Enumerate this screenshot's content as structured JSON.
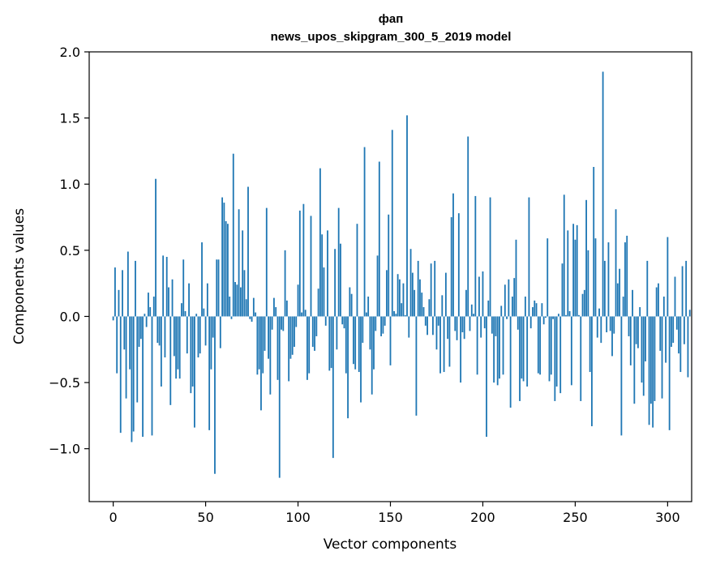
{
  "chart_data": {
    "type": "bar",
    "title": "фап",
    "subtitle": "news_upos_skipgram_300_5_2019 model",
    "xlabel": "Vector components",
    "ylabel": "Components values",
    "xlim": [
      -13,
      313
    ],
    "ylim": [
      -1.4,
      2.0
    ],
    "xticks": [
      0,
      50,
      100,
      150,
      200,
      250,
      300
    ],
    "xtick_labels": [
      "0",
      "50",
      "100",
      "150",
      "200",
      "250",
      "300"
    ],
    "yticks": [
      -1.0,
      -0.5,
      0.0,
      0.5,
      1.0,
      1.5,
      2.0
    ],
    "ytick_labels": [
      "−1.0",
      "−0.5",
      "0.0",
      "0.5",
      "1.0",
      "1.5",
      "2.0"
    ],
    "grid": false,
    "bar_color": "#1f77b4",
    "values": [
      -0.03,
      0.37,
      -0.43,
      0.2,
      -0.88,
      0.35,
      -0.25,
      -0.62,
      0.49,
      -0.4,
      -0.95,
      -0.87,
      0.42,
      -0.65,
      -0.23,
      -0.17,
      -0.91,
      0.02,
      -0.08,
      0.18,
      0.07,
      -0.9,
      0.15,
      1.04,
      -0.2,
      -0.22,
      -0.53,
      0.46,
      -0.31,
      0.45,
      0.22,
      -0.67,
      0.28,
      -0.3,
      -0.47,
      -0.4,
      -0.47,
      0.1,
      0.43,
      0.04,
      -0.28,
      0.25,
      -0.58,
      -0.53,
      -0.84,
      0.02,
      -0.31,
      -0.28,
      0.56,
      0.06,
      -0.22,
      0.25,
      -0.86,
      -0.4,
      -0.16,
      -1.19,
      0.43,
      0.43,
      -0.24,
      0.9,
      0.86,
      0.72,
      0.7,
      0.15,
      -0.02,
      1.23,
      0.26,
      0.24,
      0.81,
      0.22,
      0.65,
      0.35,
      0.13,
      0.98,
      -0.02,
      -0.04,
      0.14,
      0.03,
      -0.44,
      -0.4,
      -0.71,
      -0.43,
      -0.26,
      0.82,
      -0.32,
      -0.59,
      -0.1,
      0.14,
      0.07,
      -0.48,
      -1.22,
      -0.1,
      -0.11,
      0.5,
      0.12,
      -0.49,
      -0.32,
      -0.29,
      -0.23,
      -0.08,
      0.24,
      0.8,
      0.03,
      0.85,
      0.05,
      -0.48,
      -0.43,
      0.76,
      -0.23,
      -0.26,
      -0.15,
      0.21,
      1.12,
      0.62,
      0.37,
      -0.07,
      0.65,
      -0.41,
      -0.39,
      -1.07,
      0.51,
      -0.25,
      0.82,
      0.55,
      -0.06,
      -0.09,
      -0.43,
      -0.77,
      0.22,
      0.17,
      -0.36,
      -0.4,
      0.7,
      -0.42,
      -0.65,
      -0.2,
      1.28,
      0.03,
      0.15,
      -0.25,
      -0.59,
      -0.4,
      -0.11,
      0.46,
      1.17,
      -0.15,
      -0.13,
      -0.07,
      0.35,
      0.77,
      -0.37,
      1.41,
      0.04,
      0.02,
      0.32,
      0.28,
      0.1,
      0.25,
      0.01,
      1.52,
      -0.16,
      0.51,
      0.33,
      0.2,
      -0.75,
      0.42,
      0.28,
      0.18,
      0.07,
      -0.07,
      -0.14,
      0.13,
      0.4,
      -0.14,
      0.42,
      -0.25,
      -0.07,
      -0.43,
      0.16,
      -0.42,
      0.33,
      -0.17,
      -0.38,
      0.75,
      0.93,
      -0.11,
      -0.18,
      0.78,
      -0.5,
      -0.12,
      -0.17,
      0.2,
      1.36,
      -0.11,
      0.09,
      0.02,
      0.91,
      -0.44,
      0.3,
      -0.16,
      0.34,
      -0.09,
      -0.91,
      0.12,
      0.9,
      -0.13,
      -0.5,
      -0.15,
      -0.52,
      -0.47,
      0.08,
      -0.44,
      0.24,
      -0.02,
      0.28,
      -0.69,
      0.15,
      0.29,
      0.58,
      -0.1,
      -0.64,
      -0.47,
      -0.49,
      0.15,
      -0.53,
      0.9,
      -0.09,
      0.07,
      0.12,
      0.1,
      -0.43,
      -0.44,
      0.1,
      -0.06,
      -0.01,
      0.59,
      -0.49,
      -0.44,
      -0.02,
      -0.64,
      -0.53,
      0.02,
      -0.58,
      0.4,
      0.92,
      0.01,
      0.65,
      0.04,
      -0.52,
      0.7,
      0.58,
      0.69,
      0.01,
      -0.64,
      0.17,
      0.2,
      0.88,
      0.5,
      -0.42,
      -0.83,
      1.13,
      0.59,
      -0.16,
      0.06,
      -0.2,
      1.85,
      0.42,
      -0.12,
      0.56,
      -0.11,
      -0.3,
      -0.13,
      0.81,
      0.25,
      0.36,
      -0.9,
      0.15,
      0.56,
      0.61,
      -0.15,
      -0.37,
      0.2,
      -0.66,
      -0.21,
      -0.24,
      0.07,
      -0.5,
      -0.6,
      -0.34,
      0.42,
      -0.82,
      -0.66,
      -0.84,
      -0.64,
      0.22,
      0.25,
      -0.26,
      -0.62,
      0.15,
      -0.35,
      0.6,
      -0.86,
      -0.23,
      -0.2,
      0.3,
      -0.1,
      -0.28,
      -0.42,
      0.38,
      -0.21,
      0.42,
      -0.46,
      0.05
    ]
  }
}
